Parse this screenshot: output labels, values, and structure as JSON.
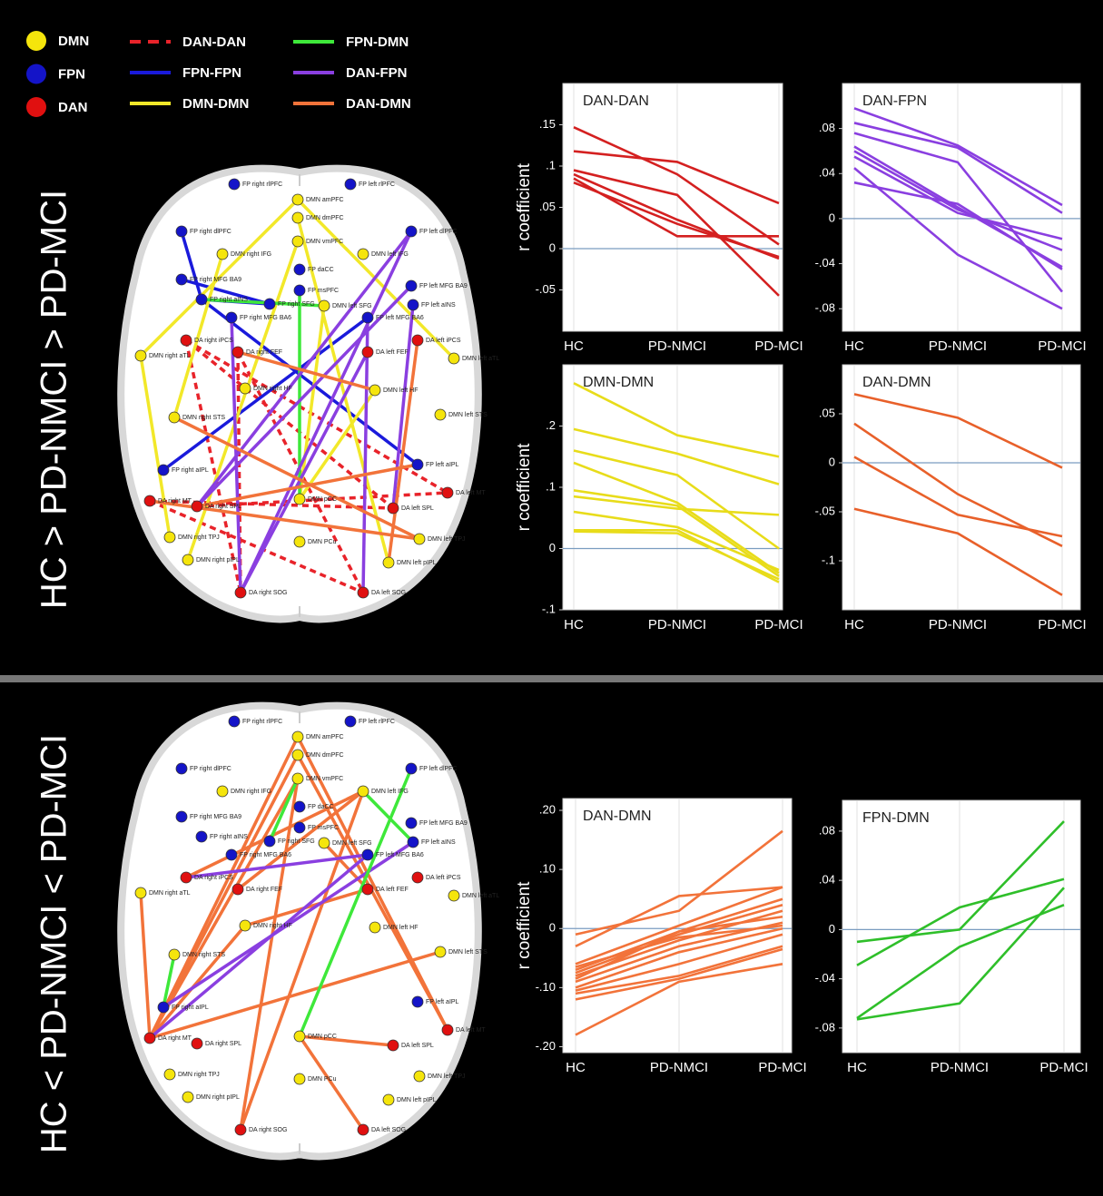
{
  "legend": {
    "nodes": [
      {
        "label": "DMN",
        "color": "#f5e50c"
      },
      {
        "label": "FPN",
        "color": "#1414c8"
      },
      {
        "label": "DAN",
        "color": "#e01010"
      }
    ],
    "edges": [
      {
        "label": "DAN-DAN",
        "color": "#e8232a",
        "dashed": true
      },
      {
        "label": "FPN-FPN",
        "color": "#1a1adb"
      },
      {
        "label": "DMN-DMN",
        "color": "#f2e829"
      },
      {
        "label": "FPN-DMN",
        "color": "#3ee83a"
      },
      {
        "label": "DAN-FPN",
        "color": "#8a3fe0"
      },
      {
        "label": "DAN-DMN",
        "color": "#f2733a"
      }
    ]
  },
  "panels": [
    {
      "label": "HC > PD-NMCI > PD-MCI"
    },
    {
      "label": "HC < PD-NMCI < PD-MCI"
    }
  ],
  "nodes": [
    "FP right rlPFC",
    "FP left rlPFC",
    "DMN amPFC",
    "DMN dmPFC",
    "FP right dlPFC",
    "FP left dlPFC",
    "DMN right IFG",
    "DMN vmPFC",
    "DMN left IFG",
    "FP daCC",
    "FP msPFC",
    "FP right MFG BA9",
    "FP left MFG BA9",
    "FP right SFG",
    "DMN left SFG",
    "FP right aINS",
    "FP left aINS",
    "FP right MFG BA6",
    "FP left MFG BA6",
    "DA right iPCS",
    "DA left iPCS",
    "DMN right aTL",
    "DMN left aTL",
    "DA right FEF",
    "DA left FEF",
    "DMN right HF",
    "DMN left HF",
    "DMN right STS",
    "DMN left STS",
    "FP right aIPL",
    "FP left aIPL",
    "DA right MT",
    "DA left MT",
    "DMN pCC",
    "DA right SPL",
    "DA left SPL",
    "DMN right TPJ",
    "DMN left TPJ",
    "DMN PCu",
    "DMN right pIPL",
    "DMN left pIPL",
    "DA right SOG",
    "DA left SOG"
  ],
  "chart_data": [
    {
      "type": "line",
      "title": "DAN-DAN",
      "ylabel": "r coefficient",
      "color": "#d42020",
      "categories": [
        "HC",
        "PD-NMCI",
        "PD-MCI"
      ],
      "ylim": [
        -0.1,
        0.2
      ],
      "yticks": [
        {
          "value": 0.15,
          "label": ".15"
        },
        {
          "value": 0.1,
          "label": ".1"
        },
        {
          "value": 0.05,
          "label": ".05"
        },
        0,
        {
          "value": -0.05,
          "label": "-.05"
        }
      ],
      "series": [
        {
          "values": [
            0.147,
            0.09,
            0.005
          ]
        },
        {
          "values": [
            0.118,
            0.105,
            0.055
          ]
        },
        {
          "values": [
            0.095,
            0.065,
            -0.057
          ]
        },
        {
          "values": [
            0.09,
            0.035,
            -0.012
          ]
        },
        {
          "values": [
            0.085,
            0.015,
            0.015
          ]
        },
        {
          "values": [
            0.08,
            0.03,
            -0.01
          ]
        }
      ]
    },
    {
      "type": "line",
      "title": "DAN-FPN",
      "color": "#8a3fe0",
      "categories": [
        "HC",
        "PD-NMCI",
        "PD-MCI"
      ],
      "ylim": [
        -0.1,
        0.12
      ],
      "yticks": [
        {
          "value": 0.08,
          "label": ".08"
        },
        {
          "value": 0.04,
          "label": ".04"
        },
        0,
        {
          "value": -0.04,
          "label": "-.04"
        },
        {
          "value": -0.08,
          "label": "-.08"
        }
      ],
      "series": [
        {
          "values": [
            0.098,
            0.065,
            0.012
          ]
        },
        {
          "values": [
            0.085,
            0.063,
            0.005
          ]
        },
        {
          "values": [
            0.076,
            0.05,
            -0.065
          ]
        },
        {
          "values": [
            0.064,
            0.01,
            -0.043
          ]
        },
        {
          "values": [
            0.06,
            0.008,
            -0.028
          ]
        },
        {
          "values": [
            0.055,
            0.005,
            -0.018
          ]
        },
        {
          "values": [
            0.045,
            -0.032,
            -0.08
          ]
        },
        {
          "values": [
            0.032,
            0.013,
            -0.045
          ]
        }
      ]
    },
    {
      "type": "line",
      "title": "DMN-DMN",
      "ylabel": "r coefficient",
      "color": "#e8dc1a",
      "categories": [
        "HC",
        "PD-NMCI",
        "PD-MCI"
      ],
      "ylim": [
        -0.1,
        0.3
      ],
      "yticks": [
        {
          "value": 0.2,
          "label": ".2"
        },
        {
          "value": 0.1,
          "label": ".1"
        },
        0,
        {
          "value": -0.1,
          "label": "-.1"
        }
      ],
      "series": [
        {
          "values": [
            0.27,
            0.185,
            0.15
          ]
        },
        {
          "values": [
            0.195,
            0.155,
            0.105
          ]
        },
        {
          "values": [
            0.16,
            0.12,
            0.0
          ]
        },
        {
          "values": [
            0.14,
            0.075,
            -0.04
          ]
        },
        {
          "values": [
            0.095,
            0.07,
            -0.045
          ]
        },
        {
          "values": [
            0.085,
            0.065,
            0.055
          ]
        },
        {
          "values": [
            0.06,
            0.035,
            -0.035
          ]
        },
        {
          "values": [
            0.03,
            0.03,
            -0.055
          ]
        },
        {
          "values": [
            0.028,
            0.025,
            -0.05
          ]
        }
      ]
    },
    {
      "type": "line",
      "title": "DAN-DMN",
      "color": "#e8602a",
      "categories": [
        "HC",
        "PD-NMCI",
        "PD-MCI"
      ],
      "ylim": [
        -0.15,
        0.1
      ],
      "yticks": [
        {
          "value": 0.05,
          "label": ".05"
        },
        0,
        {
          "value": -0.05,
          "label": "-.05"
        },
        {
          "value": -0.1,
          "label": "-.1"
        }
      ],
      "series": [
        {
          "values": [
            0.07,
            0.046,
            -0.005
          ]
        },
        {
          "values": [
            0.04,
            -0.032,
            -0.085
          ]
        },
        {
          "values": [
            0.006,
            -0.053,
            -0.075
          ]
        },
        {
          "values": [
            -0.047,
            -0.072,
            -0.135
          ]
        }
      ]
    },
    {
      "type": "line",
      "title": "DAN-DMN",
      "ylabel": "r coefficient",
      "color": "#f2733a",
      "categories": [
        "HC",
        "PD-NMCI",
        "PD-MCI"
      ],
      "ylim": [
        -0.21,
        0.22
      ],
      "yticks": [
        {
          "value": 0.2,
          "label": ".20"
        },
        {
          "value": 0.1,
          "label": ".10"
        },
        0,
        {
          "value": -0.1,
          "label": "-.10"
        },
        {
          "value": -0.2,
          "label": "-.20"
        }
      ],
      "series": [
        {
          "values": [
            -0.01,
            0.03,
            0.165
          ]
        },
        {
          "values": [
            -0.03,
            0.055,
            0.07
          ]
        },
        {
          "values": [
            -0.06,
            0.005,
            0.07
          ]
        },
        {
          "values": [
            -0.07,
            -0.005,
            0.05
          ]
        },
        {
          "values": [
            -0.075,
            -0.01,
            0.04
          ]
        },
        {
          "values": [
            -0.08,
            -0.02,
            0.03
          ]
        },
        {
          "values": [
            -0.085,
            -0.005,
            0.02
          ]
        },
        {
          "values": [
            -0.09,
            -0.03,
            0.01
          ]
        },
        {
          "values": [
            -0.1,
            -0.04,
            0.0
          ]
        },
        {
          "values": [
            -0.105,
            -0.06,
            -0.01
          ]
        },
        {
          "values": [
            -0.11,
            -0.08,
            -0.03
          ]
        },
        {
          "values": [
            -0.12,
            -0.085,
            -0.035
          ]
        },
        {
          "values": [
            -0.18,
            -0.09,
            -0.06
          ]
        },
        {
          "values": [
            -0.065,
            -0.015,
            0.005
          ]
        }
      ]
    },
    {
      "type": "line",
      "title": "FPN-DMN",
      "color": "#2fbf2a",
      "categories": [
        "HC",
        "PD-NMCI",
        "PD-MCI"
      ],
      "ylim": [
        -0.1,
        0.105
      ],
      "yticks": [
        {
          "value": 0.08,
          "label": ".08"
        },
        {
          "value": 0.04,
          "label": ".04"
        },
        0,
        {
          "value": -0.04,
          "label": "-.04"
        },
        {
          "value": -0.08,
          "label": "-.08"
        }
      ],
      "series": [
        {
          "values": [
            -0.01,
            0.0,
            0.088
          ]
        },
        {
          "values": [
            -0.029,
            0.018,
            0.041
          ]
        },
        {
          "values": [
            -0.072,
            -0.014,
            0.02
          ]
        },
        {
          "values": [
            -0.073,
            -0.06,
            0.034
          ]
        }
      ]
    }
  ]
}
